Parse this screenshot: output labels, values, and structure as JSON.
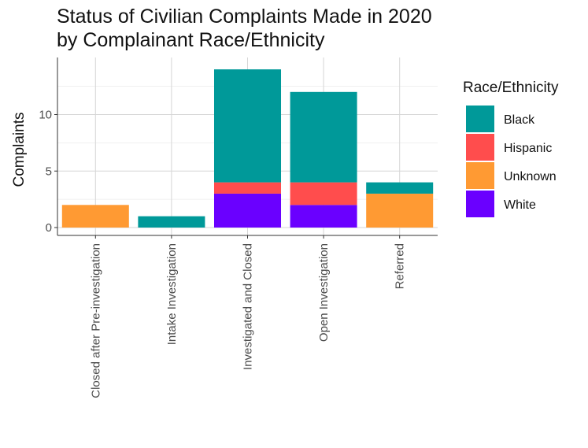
{
  "chart_data": {
    "type": "bar",
    "stacked": true,
    "title": "Status of Civilian Complaints Made in 2020\nby Complainant Race/Ethnicity",
    "xlabel": "",
    "ylabel": "Complaints",
    "ylim": [
      0,
      14
    ],
    "yticks": [
      0,
      5,
      10
    ],
    "grid": true,
    "legend_title": "Race/Ethnicity",
    "legend_position": "right",
    "categories": [
      "Closed after Pre-investigation",
      "Intake Investigation",
      "Investigated and Closed",
      "Open Investigation",
      "Referred"
    ],
    "series": [
      {
        "name": "White",
        "color": "#6a00ff",
        "values": [
          0,
          0,
          3,
          2,
          0
        ]
      },
      {
        "name": "Unknown",
        "color": "#ff9a33",
        "values": [
          2,
          0,
          0,
          0,
          3
        ]
      },
      {
        "name": "Hispanic",
        "color": "#ff4d4d",
        "values": [
          0,
          0,
          1,
          2,
          0
        ]
      },
      {
        "name": "Black",
        "color": "#009999",
        "values": [
          0,
          1,
          10,
          8,
          1
        ]
      }
    ],
    "legend_order": [
      "Black",
      "Hispanic",
      "Unknown",
      "White"
    ]
  }
}
